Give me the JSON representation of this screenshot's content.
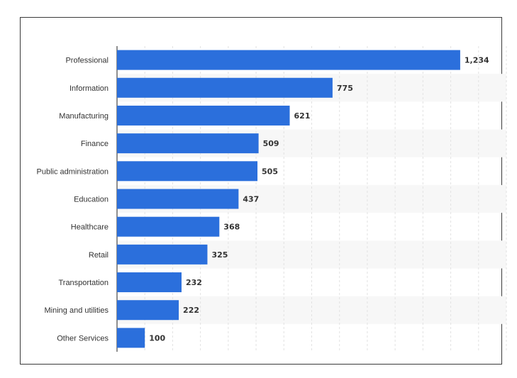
{
  "chart_data": {
    "type": "bar",
    "orientation": "horizontal",
    "categories": [
      "Professional",
      "Information",
      "Manufacturing",
      "Finance",
      "Public administration",
      "Education",
      "Healthcare",
      "Retail",
      "Transportation",
      "Mining and utilities",
      "Other Services"
    ],
    "values": [
      1234,
      775,
      621,
      509,
      505,
      437,
      368,
      325,
      232,
      222,
      100
    ],
    "value_labels": [
      "1,234",
      "775",
      "621",
      "509",
      "505",
      "437",
      "368",
      "325",
      "232",
      "222",
      "100"
    ],
    "xlim": [
      0,
      1400
    ],
    "grid": true,
    "bar_color": "#2b6fdc"
  }
}
